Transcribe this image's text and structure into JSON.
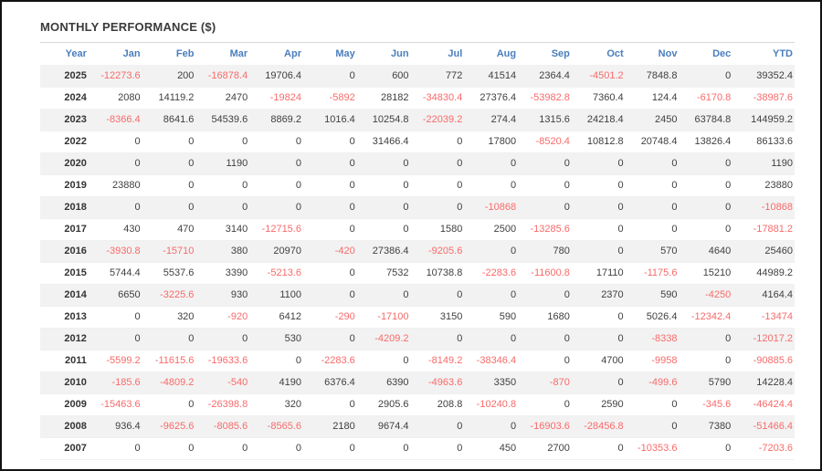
{
  "title": "MONTHLY PERFORMANCE ($)",
  "colors": {
    "header_text": "#4a7ebd",
    "negative_value": "#f96a6a",
    "value_text": "#3f3f3f",
    "row_stripe": "#f2f2f2",
    "frame_border": "#121212"
  },
  "table": {
    "columns": [
      "Year",
      "Jan",
      "Feb",
      "Mar",
      "Apr",
      "May",
      "Jun",
      "Jul",
      "Aug",
      "Sep",
      "Oct",
      "Nov",
      "Dec",
      "YTD"
    ],
    "rows": [
      {
        "year": "2025",
        "values": [
          "-12273.6",
          "200",
          "-16878.4",
          "19706.4",
          "0",
          "600",
          "772",
          "41514",
          "2364.4",
          "-4501.2",
          "7848.8",
          "0",
          "39352.4"
        ]
      },
      {
        "year": "2024",
        "values": [
          "2080",
          "14119.2",
          "2470",
          "-19824",
          "-5892",
          "28182",
          "-34830.4",
          "27376.4",
          "-53982.8",
          "7360.4",
          "124.4",
          "-6170.8",
          "-38987.6"
        ]
      },
      {
        "year": "2023",
        "values": [
          "-8366.4",
          "8641.6",
          "54539.6",
          "8869.2",
          "1016.4",
          "10254.8",
          "-22039.2",
          "274.4",
          "1315.6",
          "24218.4",
          "2450",
          "63784.8",
          "144959.2"
        ]
      },
      {
        "year": "2022",
        "values": [
          "0",
          "0",
          "0",
          "0",
          "0",
          "31466.4",
          "0",
          "17800",
          "-8520.4",
          "10812.8",
          "20748.4",
          "13826.4",
          "86133.6"
        ]
      },
      {
        "year": "2020",
        "values": [
          "0",
          "0",
          "1190",
          "0",
          "0",
          "0",
          "0",
          "0",
          "0",
          "0",
          "0",
          "0",
          "1190"
        ]
      },
      {
        "year": "2019",
        "values": [
          "23880",
          "0",
          "0",
          "0",
          "0",
          "0",
          "0",
          "0",
          "0",
          "0",
          "0",
          "0",
          "23880"
        ]
      },
      {
        "year": "2018",
        "values": [
          "0",
          "0",
          "0",
          "0",
          "0",
          "0",
          "0",
          "-10868",
          "0",
          "0",
          "0",
          "0",
          "-10868"
        ]
      },
      {
        "year": "2017",
        "values": [
          "430",
          "470",
          "3140",
          "-12715.6",
          "0",
          "0",
          "1580",
          "2500",
          "-13285.6",
          "0",
          "0",
          "0",
          "-17881.2"
        ]
      },
      {
        "year": "2016",
        "values": [
          "-3930.8",
          "-15710",
          "380",
          "20970",
          "-420",
          "27386.4",
          "-9205.6",
          "0",
          "780",
          "0",
          "570",
          "4640",
          "25460"
        ]
      },
      {
        "year": "2015",
        "values": [
          "5744.4",
          "5537.6",
          "3390",
          "-5213.6",
          "0",
          "7532",
          "10738.8",
          "-2283.6",
          "-11600.8",
          "17110",
          "-1175.6",
          "15210",
          "44989.2"
        ]
      },
      {
        "year": "2014",
        "values": [
          "6650",
          "-3225.6",
          "930",
          "1100",
          "0",
          "0",
          "0",
          "0",
          "0",
          "2370",
          "590",
          "-4250",
          "4164.4"
        ]
      },
      {
        "year": "2013",
        "values": [
          "0",
          "320",
          "-920",
          "6412",
          "-290",
          "-17100",
          "3150",
          "590",
          "1680",
          "0",
          "5026.4",
          "-12342.4",
          "-13474"
        ]
      },
      {
        "year": "2012",
        "values": [
          "0",
          "0",
          "0",
          "530",
          "0",
          "-4209.2",
          "0",
          "0",
          "0",
          "0",
          "-8338",
          "0",
          "-12017.2"
        ]
      },
      {
        "year": "2011",
        "values": [
          "-5599.2",
          "-11615.6",
          "-19633.6",
          "0",
          "-2283.6",
          "0",
          "-8149.2",
          "-38346.4",
          "0",
          "4700",
          "-9958",
          "0",
          "-90885.6"
        ]
      },
      {
        "year": "2010",
        "values": [
          "-185.6",
          "-4809.2",
          "-540",
          "4190",
          "6376.4",
          "6390",
          "-4963.6",
          "3350",
          "-870",
          "0",
          "-499.6",
          "5790",
          "14228.4"
        ]
      },
      {
        "year": "2009",
        "values": [
          "-15463.6",
          "0",
          "-26398.8",
          "320",
          "0",
          "2905.6",
          "208.8",
          "-10240.8",
          "0",
          "2590",
          "0",
          "-345.6",
          "-46424.4"
        ]
      },
      {
        "year": "2008",
        "values": [
          "936.4",
          "-9625.6",
          "-8085.6",
          "-8565.6",
          "2180",
          "9674.4",
          "0",
          "0",
          "-16903.6",
          "-28456.8",
          "0",
          "7380",
          "-51466.4"
        ]
      },
      {
        "year": "2007",
        "values": [
          "0",
          "0",
          "0",
          "0",
          "0",
          "0",
          "0",
          "450",
          "2700",
          "0",
          "-10353.6",
          "0",
          "-7203.6"
        ]
      }
    ]
  }
}
